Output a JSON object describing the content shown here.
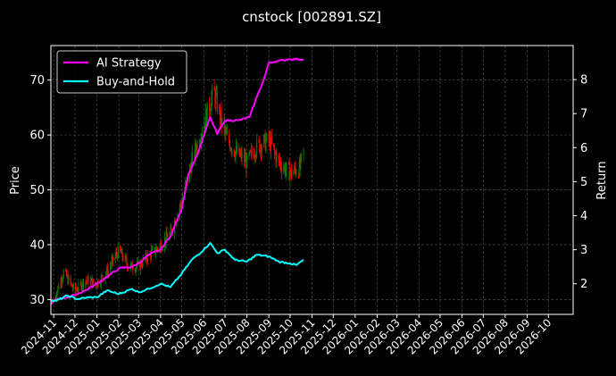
{
  "chart_data": {
    "type": "line",
    "title": "cnstock [002891.SZ]",
    "ylabel_left": "Price",
    "ylabel_right": "Return",
    "xlabel": "",
    "grid": true,
    "legend_position": "top-left",
    "xlim": [
      "2024-10-28",
      "2026-11-05"
    ],
    "ylim_left": [
      27.3,
      76.3
    ],
    "ylim_right": [
      1.1,
      9.0
    ],
    "x_ticks": [
      "2024-11",
      "2024-12",
      "2025-01",
      "2025-02",
      "2025-03",
      "2025-04",
      "2025-05",
      "2025-06",
      "2025-07",
      "2025-08",
      "2025-09",
      "2025-10",
      "2025-11",
      "2025-12",
      "2026-01",
      "2026-02",
      "2026-03",
      "2026-04",
      "2026-05",
      "2026-06",
      "2026-07",
      "2026-08",
      "2026-09",
      "2026-10"
    ],
    "y_ticks_left": [
      30,
      40,
      50,
      60,
      70
    ],
    "y_ticks_right": [
      2,
      3,
      4,
      5,
      6,
      7,
      8
    ],
    "candles": {
      "up_color": "#008000",
      "down_color": "#ff0000",
      "left_axis": "Price",
      "price_path": [
        [
          "2024-11-01",
          30.0
        ],
        [
          "2024-11-15",
          35.0
        ],
        [
          "2024-12-01",
          31.5
        ],
        [
          "2024-12-15",
          33.5
        ],
        [
          "2025-01-01",
          33.0
        ],
        [
          "2025-01-15",
          35.0
        ],
        [
          "2025-02-01",
          39.0
        ],
        [
          "2025-02-15",
          36.0
        ],
        [
          "2025-03-01",
          36.0
        ],
        [
          "2025-03-15",
          38.0
        ],
        [
          "2025-04-01",
          40.0
        ],
        [
          "2025-04-15",
          42.0
        ],
        [
          "2025-05-01",
          48.0
        ],
        [
          "2025-05-15",
          55.0
        ],
        [
          "2025-06-01",
          62.0
        ],
        [
          "2025-06-15",
          68.0
        ],
        [
          "2025-07-01",
          60.0
        ],
        [
          "2025-07-15",
          57.0
        ],
        [
          "2025-08-01",
          55.0
        ],
        [
          "2025-08-15",
          58.0
        ],
        [
          "2025-09-01",
          59.0
        ],
        [
          "2025-09-15",
          55.0
        ],
        [
          "2025-10-01",
          53.0
        ],
        [
          "2025-10-15",
          54.0
        ],
        [
          "2025-10-20",
          57.0
        ]
      ]
    },
    "series": [
      {
        "name": "AI Strategy",
        "color": "#ff00ff",
        "axis": "Return",
        "points": [
          [
            "2024-10-28",
            1.4
          ],
          [
            "2024-11-05",
            1.55
          ],
          [
            "2024-11-20",
            1.6
          ],
          [
            "2024-12-05",
            1.7
          ],
          [
            "2024-12-20",
            1.85
          ],
          [
            "2025-01-01",
            2.0
          ],
          [
            "2025-01-15",
            2.2
          ],
          [
            "2025-02-01",
            2.45
          ],
          [
            "2025-02-20",
            2.5
          ],
          [
            "2025-03-01",
            2.6
          ],
          [
            "2025-03-15",
            2.85
          ],
          [
            "2025-04-01",
            3.0
          ],
          [
            "2025-04-15",
            3.4
          ],
          [
            "2025-05-01",
            4.2
          ],
          [
            "2025-05-10",
            5.2
          ],
          [
            "2025-05-25",
            5.9
          ],
          [
            "2025-06-10",
            6.9
          ],
          [
            "2025-06-20",
            6.4
          ],
          [
            "2025-07-01",
            6.8
          ],
          [
            "2025-07-20",
            6.8
          ],
          [
            "2025-08-05",
            6.9
          ],
          [
            "2025-08-15",
            7.5
          ],
          [
            "2025-08-25",
            8.0
          ],
          [
            "2025-09-01",
            8.5
          ],
          [
            "2025-09-15",
            8.55
          ],
          [
            "2025-10-01",
            8.6
          ],
          [
            "2025-10-20",
            8.6
          ]
        ]
      },
      {
        "name": "Buy-and-Hold",
        "color": "#00ffff",
        "axis": "Return",
        "points": [
          [
            "2024-10-28",
            1.5
          ],
          [
            "2024-11-05",
            1.5
          ],
          [
            "2024-11-20",
            1.65
          ],
          [
            "2024-12-05",
            1.55
          ],
          [
            "2024-12-20",
            1.6
          ],
          [
            "2025-01-01",
            1.6
          ],
          [
            "2025-01-15",
            1.8
          ],
          [
            "2025-02-01",
            1.7
          ],
          [
            "2025-02-20",
            1.85
          ],
          [
            "2025-03-01",
            1.75
          ],
          [
            "2025-03-15",
            1.85
          ],
          [
            "2025-04-01",
            2.0
          ],
          [
            "2025-04-15",
            1.9
          ],
          [
            "2025-05-01",
            2.3
          ],
          [
            "2025-05-15",
            2.7
          ],
          [
            "2025-06-01",
            3.0
          ],
          [
            "2025-06-10",
            3.2
          ],
          [
            "2025-06-20",
            2.9
          ],
          [
            "2025-07-01",
            3.0
          ],
          [
            "2025-07-15",
            2.7
          ],
          [
            "2025-08-01",
            2.65
          ],
          [
            "2025-08-15",
            2.85
          ],
          [
            "2025-09-01",
            2.8
          ],
          [
            "2025-09-15",
            2.65
          ],
          [
            "2025-10-01",
            2.6
          ],
          [
            "2025-10-10",
            2.55
          ],
          [
            "2025-10-20",
            2.7
          ]
        ]
      }
    ]
  }
}
